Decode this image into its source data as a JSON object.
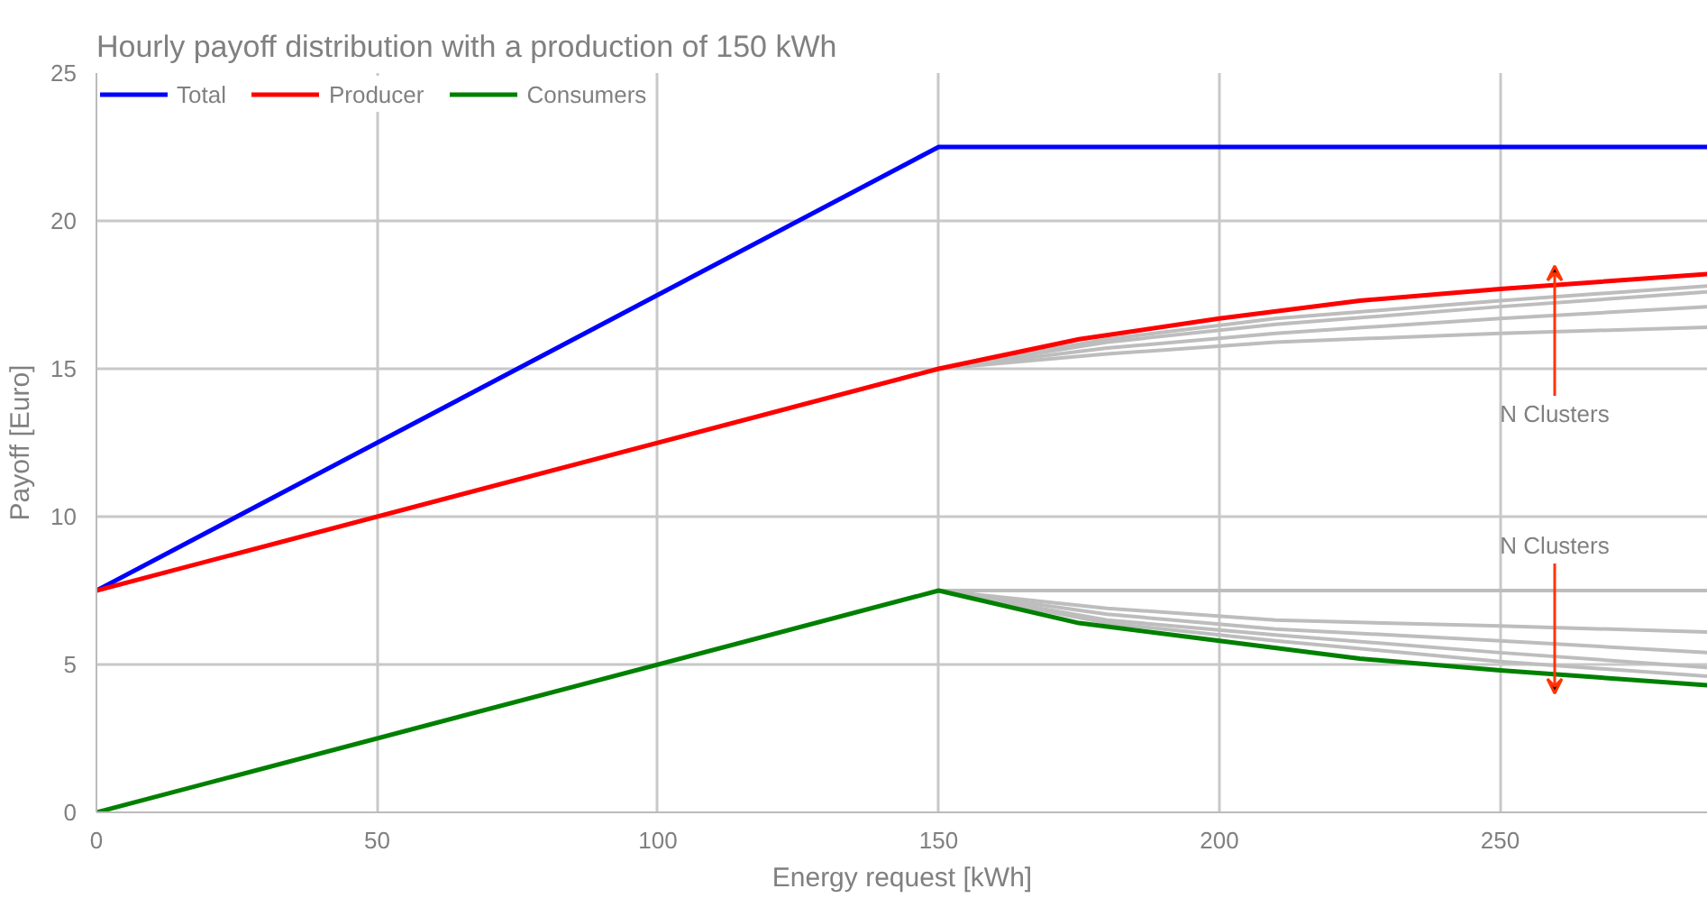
{
  "chart_data": {
    "type": "line",
    "title": "Hourly payoff distribution with a production of 150 kWh",
    "xlabel": "Energy request [kWh]",
    "ylabel": "Payoff [Euro]",
    "xlim": [
      0,
      287
    ],
    "ylim": [
      0,
      25
    ],
    "xticks": [
      0,
      50,
      100,
      150,
      200,
      250
    ],
    "yticks": [
      0,
      5,
      10,
      15,
      20,
      25
    ],
    "grid": true,
    "legend": "top left",
    "line_style": "solid",
    "marker": "none",
    "series": [
      {
        "color": "#bdbdbd",
        "x": [
          150,
          180,
          210,
          250,
          287
        ],
        "values": [
          15,
          15.5,
          15.9,
          16.2,
          16.4
        ]
      },
      {
        "color": "#bdbdbd",
        "x": [
          150,
          180,
          210,
          250,
          287
        ],
        "values": [
          15,
          15.7,
          16.2,
          16.7,
          17.1
        ]
      },
      {
        "color": "#bdbdbd",
        "x": [
          150,
          180,
          210,
          250,
          287
        ],
        "values": [
          15,
          15.9,
          16.5,
          17.1,
          17.6
        ]
      },
      {
        "color": "#bdbdbd",
        "x": [
          150,
          180,
          210,
          250,
          287
        ],
        "values": [
          15,
          16.0,
          16.7,
          17.3,
          17.8
        ]
      },
      {
        "color": "#bdbdbd",
        "x": [
          150,
          180,
          210,
          250,
          287
        ],
        "values": [
          7.5,
          7.5,
          7.5,
          7.5,
          7.5
        ]
      },
      {
        "color": "#bdbdbd",
        "x": [
          150,
          180,
          210,
          250,
          287
        ],
        "values": [
          7.5,
          6.9,
          6.5,
          6.3,
          6.1
        ]
      },
      {
        "color": "#bdbdbd",
        "x": [
          150,
          180,
          210,
          250,
          287
        ],
        "values": [
          7.5,
          6.7,
          6.2,
          5.8,
          5.4
        ]
      },
      {
        "color": "#bdbdbd",
        "x": [
          150,
          180,
          210,
          250,
          287
        ],
        "values": [
          7.5,
          6.5,
          6.0,
          5.4,
          4.9
        ]
      },
      {
        "color": "#bdbdbd",
        "x": [
          150,
          180,
          210,
          250,
          287
        ],
        "values": [
          7.5,
          6.4,
          5.8,
          5.1,
          4.6
        ]
      },
      {
        "name": "Total",
        "color": "#0000ff",
        "x": [
          0,
          150,
          287
        ],
        "values": [
          7.5,
          22.5,
          22.5
        ]
      },
      {
        "name": "Producer",
        "color": "#ff0000",
        "x": [
          0,
          150,
          175,
          200,
          225,
          250,
          287
        ],
        "values": [
          7.5,
          15,
          16.0,
          16.7,
          17.3,
          17.7,
          18.2
        ]
      },
      {
        "name": "Consumers",
        "color": "#008000",
        "x": [
          0,
          150,
          175,
          200,
          225,
          250,
          287
        ],
        "values": [
          0,
          7.5,
          6.4,
          5.8,
          5.2,
          4.8,
          4.3
        ]
      }
    ],
    "annotations": [
      "N Clusters",
      "N Clusters"
    ]
  }
}
